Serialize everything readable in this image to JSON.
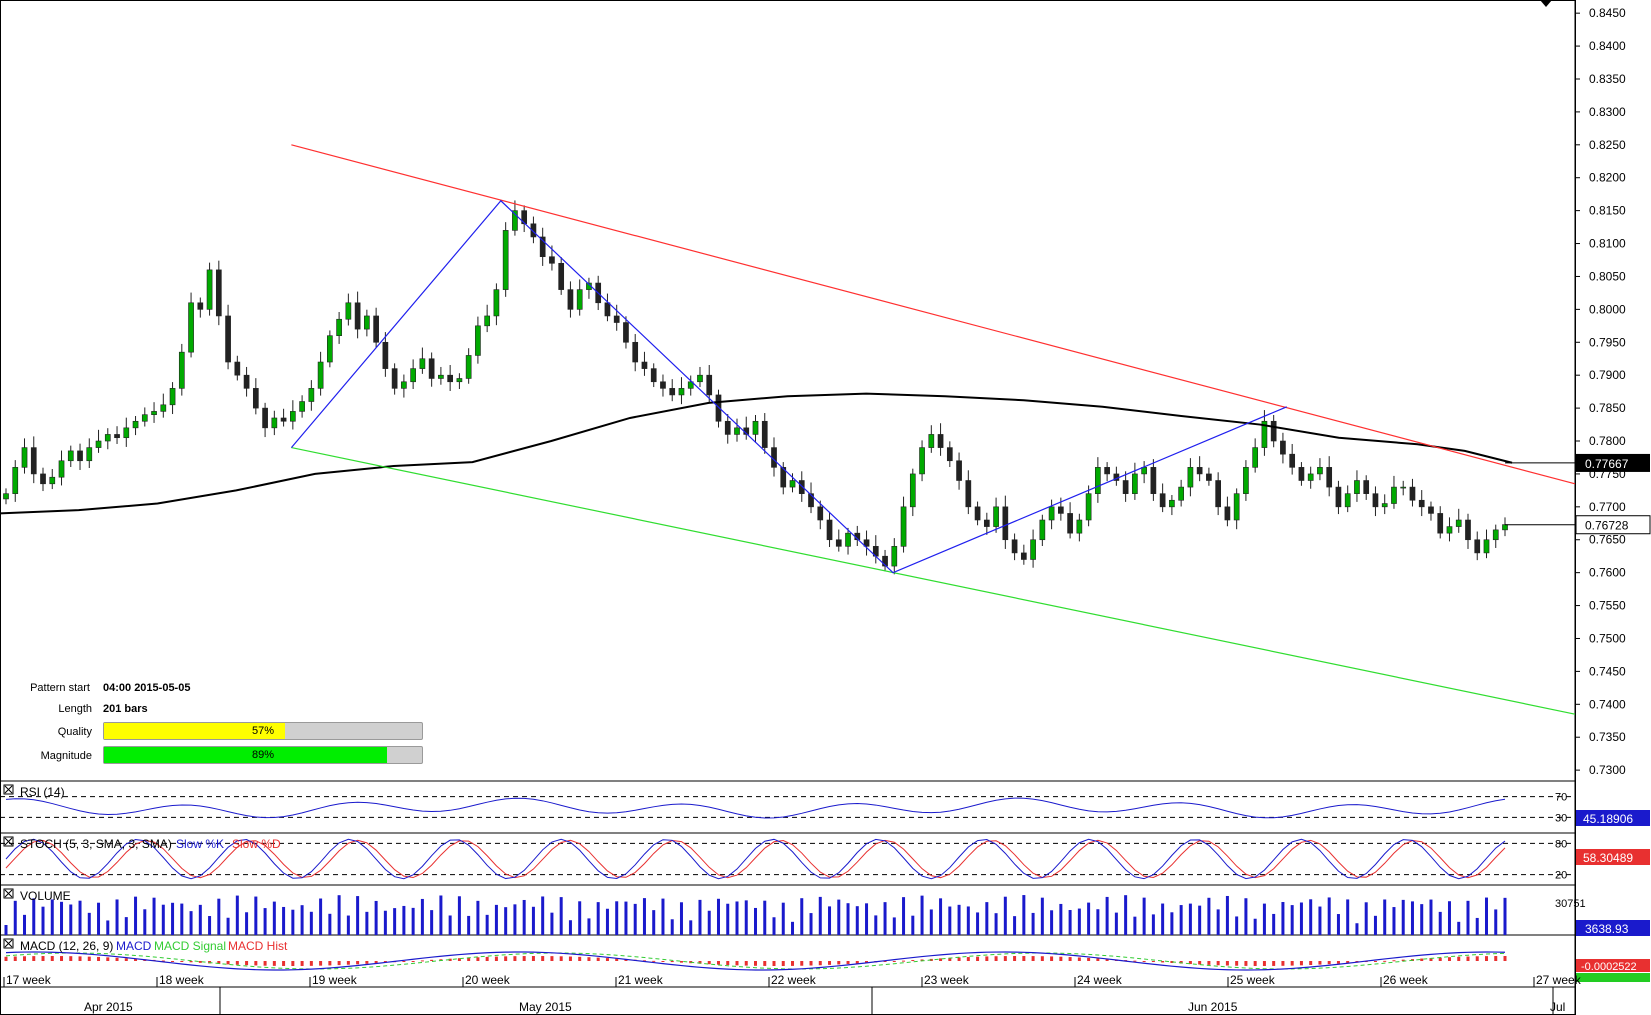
{
  "chart_data": {
    "type": "candlestick",
    "price_axis": {
      "ticks": [
        "0.8450",
        "0.8400",
        "0.8350",
        "0.8300",
        "0.8250",
        "0.8200",
        "0.8150",
        "0.8100",
        "0.8050",
        "0.8000",
        "0.7950",
        "0.7900",
        "0.7850",
        "0.7800",
        "0.7750",
        "0.7700",
        "0.7650",
        "0.7600",
        "0.7550",
        "0.7500",
        "0.7450",
        "0.7400",
        "0.7350",
        "0.7300"
      ],
      "ylim": [
        0.7285,
        0.847
      ],
      "current_price": "0.76728",
      "moving_average_last": "0.77667"
    },
    "time_axis": {
      "week_labels": [
        "17 week",
        "18 week",
        "19 week",
        "20 week",
        "21 week",
        "22 week",
        "23 week",
        "24 week",
        "25 week",
        "26 week",
        "27 week"
      ],
      "month_labels": [
        "Apr 2015",
        "May 2015",
        "Jun 2015",
        "Jul"
      ]
    },
    "pattern": {
      "upper_line": {
        "x": [
          0.185,
          1.0
        ],
        "y": [
          0.825,
          0.7735
        ],
        "color": "#ff3030"
      },
      "lower_line": {
        "x": [
          0.185,
          1.0
        ],
        "y": [
          0.779,
          0.7385
        ],
        "color": "#30dd30"
      },
      "zigzag": {
        "x": [
          0.185,
          0.318,
          0.567,
          0.817
        ],
        "y": [
          0.779,
          0.8165,
          0.76,
          0.7852
        ],
        "color": "#2020ee"
      }
    },
    "moving_average": {
      "x": [
        0,
        0.05,
        0.1,
        0.15,
        0.2,
        0.25,
        0.3,
        0.35,
        0.4,
        0.45,
        0.5,
        0.55,
        0.6,
        0.65,
        0.7,
        0.75,
        0.8,
        0.85,
        0.9,
        0.93,
        0.96
      ],
      "y": [
        0.769,
        0.7695,
        0.7705,
        0.7725,
        0.775,
        0.7762,
        0.7768,
        0.78,
        0.7835,
        0.7858,
        0.7868,
        0.7872,
        0.7868,
        0.7862,
        0.7852,
        0.7838,
        0.7825,
        0.7805,
        0.7795,
        0.7785,
        0.7767
      ]
    },
    "candles_close": [
      0.772,
      0.776,
      0.779,
      0.775,
      0.7735,
      0.7745,
      0.777,
      0.7785,
      0.777,
      0.779,
      0.78,
      0.781,
      0.7805,
      0.782,
      0.783,
      0.784,
      0.7845,
      0.7855,
      0.788,
      0.7935,
      0.801,
      0.8,
      0.806,
      0.799,
      0.792,
      0.79,
      0.788,
      0.785,
      0.782,
      0.7835,
      0.783,
      0.7845,
      0.786,
      0.788,
      0.792,
      0.796,
      0.7985,
      0.801,
      0.797,
      0.799,
      0.795,
      0.791,
      0.788,
      0.789,
      0.791,
      0.7925,
      0.7895,
      0.79,
      0.789,
      0.7895,
      0.793,
      0.7975,
      0.799,
      0.803,
      0.812,
      0.815,
      0.813,
      0.811,
      0.808,
      0.807,
      0.803,
      0.8,
      0.803,
      0.804,
      0.801,
      0.799,
      0.798,
      0.795,
      0.792,
      0.791,
      0.789,
      0.788,
      0.787,
      0.788,
      0.789,
      0.79,
      0.787,
      0.783,
      0.781,
      0.782,
      0.781,
      0.783,
      0.779,
      0.776,
      0.773,
      0.774,
      0.772,
      0.77,
      0.768,
      0.765,
      0.764,
      0.766,
      0.765,
      0.764,
      0.7625,
      0.761,
      0.764,
      0.77,
      0.775,
      0.779,
      0.781,
      0.779,
      0.777,
      0.774,
      0.77,
      0.768,
      0.767,
      0.77,
      0.765,
      0.763,
      0.762,
      0.765,
      0.768,
      0.77,
      0.769,
      0.766,
      0.768,
      0.772,
      0.776,
      0.775,
      0.774,
      0.772,
      0.775,
      0.776,
      0.772,
      0.77,
      0.771,
      0.773,
      0.776,
      0.775,
      0.774,
      0.77,
      0.768,
      0.772,
      0.776,
      0.779,
      0.783,
      0.78,
      0.778,
      0.776,
      0.774,
      0.775,
      0.776,
      0.773,
      0.77,
      0.772,
      0.774,
      0.772,
      0.77,
      0.7705,
      0.773,
      0.773,
      0.771,
      0.77,
      0.769,
      0.766,
      0.767,
      0.768,
      0.765,
      0.763,
      0.765,
      0.7665,
      0.7673
    ]
  },
  "pattern_info": {
    "start_label": "Pattern start",
    "start_value": "04:00 2015-05-05",
    "length_label": "Length",
    "length_value": "201 bars",
    "quality_label": "Quality",
    "quality_pct": 57,
    "quality_text": "57%",
    "quality_color": "#ffff00",
    "magnitude_label": "Magnitude",
    "magnitude_pct": 89,
    "magnitude_text": "89%",
    "magnitude_color": "#00ee00"
  },
  "indicators": {
    "rsi": {
      "label": "RSI (14)",
      "level_high": "70",
      "level_low": "30",
      "value": "45.18906",
      "badge_color": "#1a1acc"
    },
    "stoch": {
      "label_main": "STOCH (5, 3, SMA, 3, SMA)",
      "label_k": "Slow %K",
      "label_d": "Slow %D",
      "level_high": "80",
      "level_low": "20",
      "value": "58.30489",
      "badge_color": "#e83030"
    },
    "volume": {
      "label": "VOLUME",
      "axis_value": "30751",
      "value": "3638.93",
      "badge_color": "#1a1acc"
    },
    "macd": {
      "label_main": "MACD (12, 26, 9)",
      "label_macd": "MACD",
      "label_signal": "MACD Signal",
      "label_hist": "MACD Hist",
      "value": "-0.0002522",
      "badge_color": "#e83030",
      "value2_color": "#22cc22"
    }
  },
  "colors": {
    "up_candle": "#00aa00",
    "down_candle": "#222222",
    "ma_line": "#000000",
    "rsi_line": "#1a1acc",
    "stoch_k": "#1a1acc",
    "stoch_d": "#e83030",
    "volume_bar": "#1a1acc",
    "macd_line": "#1a1acc",
    "macd_signal": "#33cc33",
    "macd_hist": "#e83030"
  }
}
